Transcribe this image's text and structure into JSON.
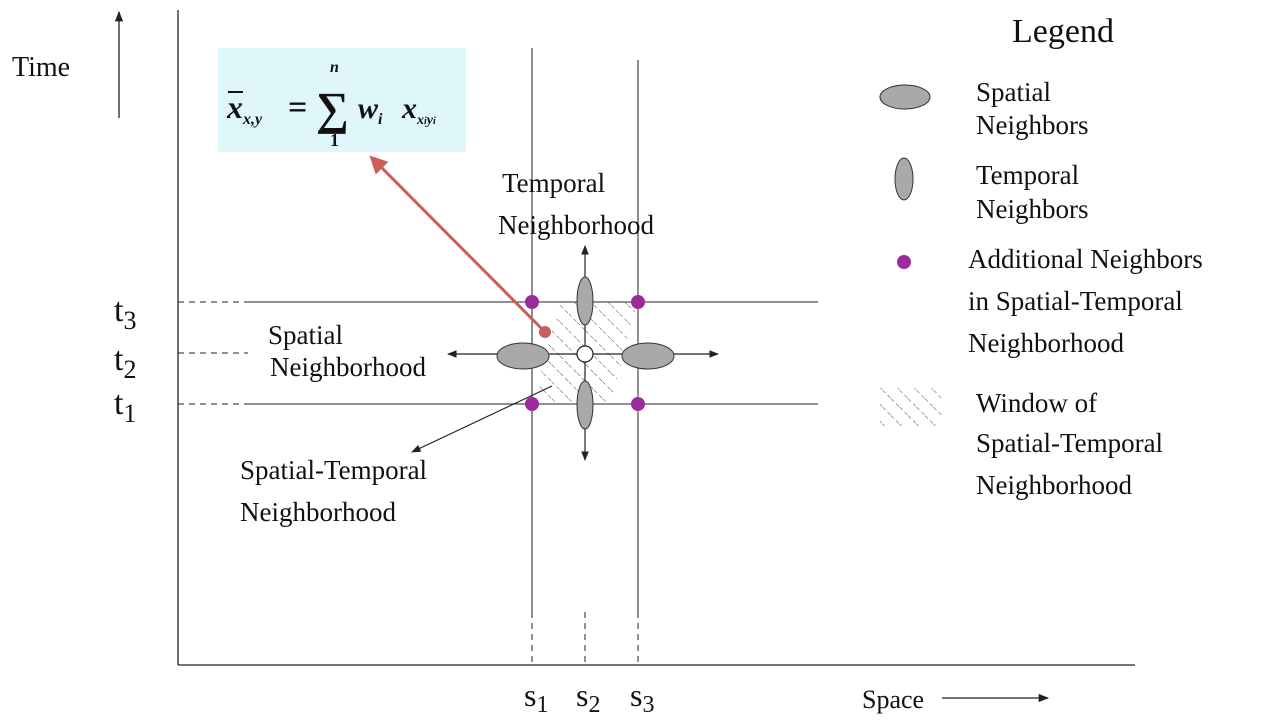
{
  "axes": {
    "y_label": "Time",
    "x_label": "Space",
    "time_ticks": [
      {
        "main": "t",
        "sub": "3"
      },
      {
        "main": "t",
        "sub": "2"
      },
      {
        "main": "t",
        "sub": "1"
      }
    ],
    "space_ticks": [
      {
        "main": "s",
        "sub": "1"
      },
      {
        "main": "s",
        "sub": "2"
      },
      {
        "main": "s",
        "sub": "3"
      }
    ]
  },
  "formula": {
    "lhs": "x",
    "lhs_sub": "x,y",
    "equals": "=",
    "sum_symbol": "∑",
    "sum_top": "n",
    "sum_bottom": "1",
    "weight": "w",
    "weight_sub": "i",
    "term": "x",
    "term_sub": "x",
    "term_sub_i": "i",
    "term_sub_y": "y",
    "term_sub_i2": "i",
    "background_color": "#dff6fa"
  },
  "annotations": {
    "temporal_neighborhood": [
      "Temporal",
      "Neighborhood"
    ],
    "spatial_neighborhood": [
      "Spatial",
      "Neighborhood"
    ],
    "spatial_temporal_neighborhood": [
      "Spatial-Temporal",
      "Neighborhood"
    ]
  },
  "legend": {
    "title": "Legend",
    "items": [
      {
        "icon": "horizontal-ellipse-icon",
        "lines": [
          "Spatial",
          "Neighbors"
        ]
      },
      {
        "icon": "vertical-ellipse-icon",
        "lines": [
          "Temporal",
          "Neighbors"
        ]
      },
      {
        "icon": "purple-dot-icon",
        "lines": [
          "Additional Neighbors",
          "in Spatial-Temporal",
          "Neighborhood"
        ]
      },
      {
        "icon": "hatched-window-icon",
        "lines": [
          "Window of",
          "Spatial-Temporal",
          "Neighborhood"
        ]
      }
    ]
  },
  "colors": {
    "ellipse_fill": "#a9a9a9",
    "dot_fill": "#9b2a9b",
    "arrow_red": "#cd5c5c",
    "line": "#222222"
  }
}
